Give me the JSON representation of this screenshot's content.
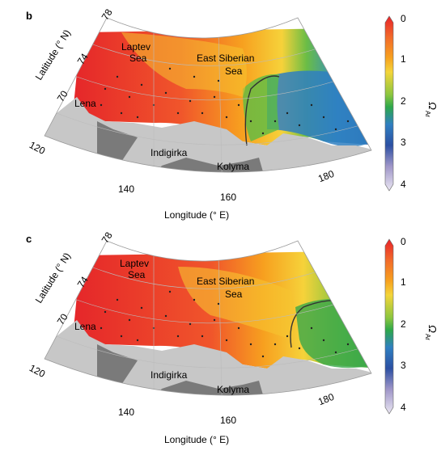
{
  "panels": [
    {
      "letter": "b",
      "lat_axis_label": "Latitude (° N)",
      "lon_axis_label": "Longitude (° E)",
      "lat_ticks": [
        "78",
        "74",
        "70"
      ],
      "lon_ticks": [
        "120",
        "140",
        "160",
        "180"
      ],
      "labels": {
        "sea1_a": "Laptev",
        "sea1_b": "Sea",
        "sea2_a": "East Siberian",
        "sea2_b": "Sea",
        "river1": "Lena",
        "river2": "Indigirka",
        "river3": "Kolyma"
      }
    },
    {
      "letter": "c",
      "lat_axis_label": "Latitude (° N)",
      "lon_axis_label": "Longitude (° E)",
      "lat_ticks": [
        "78",
        "74",
        "70"
      ],
      "lon_ticks": [
        "120",
        "140",
        "160",
        "180"
      ],
      "labels": {
        "sea1_a": "Laptev",
        "sea1_b": "Sea",
        "sea2_a": "East Siberian",
        "sea2_b": "Sea",
        "river1": "Lena",
        "river2": "Indigirka",
        "river3": "Kolyma"
      }
    }
  ],
  "colorbar": {
    "ticks": [
      "0",
      "1",
      "2",
      "3",
      "4"
    ],
    "label": "Ω",
    "label_sub": "Ar",
    "colors": [
      "#e8232a",
      "#f26a2a",
      "#f7a21f",
      "#f4d53a",
      "#56b947",
      "#2f7fc1",
      "#2c50a3",
      "#e2dcec"
    ]
  }
}
